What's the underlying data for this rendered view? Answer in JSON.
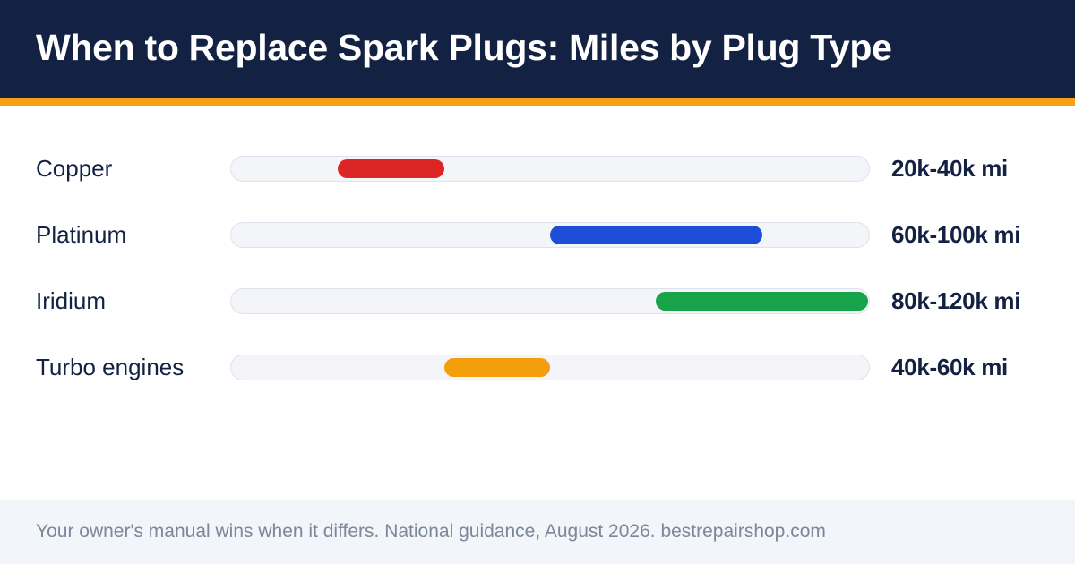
{
  "header": {
    "title": "When to Replace Spark Plugs: Miles by Plug Type"
  },
  "colors": {
    "header_bg": "#132143",
    "accent": "#F5A113",
    "track_bg": "#F3F5F9",
    "text_dark": "#132143",
    "footer_text": "#7C8799"
  },
  "chart_data": {
    "type": "bar",
    "orientation": "horizontal-range",
    "title": "When to Replace Spark Plugs: Miles by Plug Type",
    "xlabel": "",
    "ylabel": "",
    "units": "miles",
    "xlim": [
      0,
      120000
    ],
    "grid": false,
    "categories": [
      "Copper",
      "Platinum",
      "Iridium",
      "Turbo engines"
    ],
    "ranges": [
      {
        "label": "Copper",
        "start": 20000,
        "end": 40000,
        "value_label": "20k-40k mi",
        "color": "#DC2626"
      },
      {
        "label": "Platinum",
        "start": 60000,
        "end": 100000,
        "value_label": "60k-100k mi",
        "color": "#1D4ED8"
      },
      {
        "label": "Iridium",
        "start": 80000,
        "end": 120000,
        "value_label": "80k-120k mi",
        "color": "#16A34A"
      },
      {
        "label": "Turbo engines",
        "start": 40000,
        "end": 60000,
        "value_label": "40k-60k mi",
        "color": "#F59E0B"
      }
    ]
  },
  "footer": {
    "text": "Your owner's manual wins when it differs. National guidance, August 2026. bestrepairshop.com"
  }
}
